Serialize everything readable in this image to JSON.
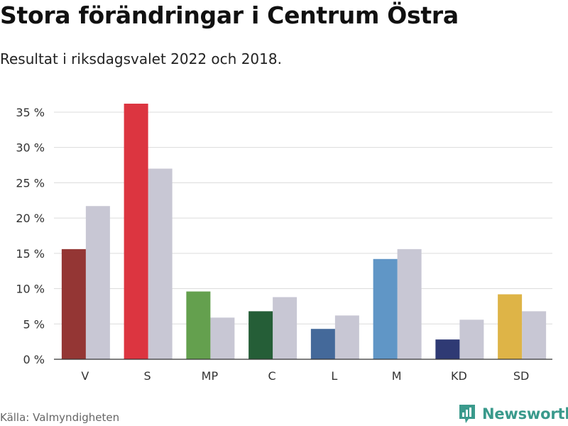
{
  "chart_data": {
    "type": "bar",
    "title": "Stora förändringar i Centrum Östra",
    "subtitle": "Resultat i riksdagsvalet 2022 och 2018.",
    "categories": [
      "V",
      "S",
      "MP",
      "C",
      "L",
      "M",
      "KD",
      "SD"
    ],
    "series": [
      {
        "name": "2022",
        "values": [
          15.6,
          36.2,
          9.6,
          6.8,
          4.3,
          14.2,
          2.8,
          9.2
        ],
        "colors": [
          "#943634",
          "#dc3540",
          "#64a04e",
          "#255e37",
          "#44699a",
          "#6096c6",
          "#2f3a74",
          "#deb447"
        ]
      },
      {
        "name": "2018",
        "values": [
          21.7,
          27.0,
          5.9,
          8.8,
          6.2,
          15.6,
          5.6,
          6.8
        ],
        "color": "#c8c7d4"
      }
    ],
    "y_ticks": [
      "0 %",
      "5 %",
      "10 %",
      "15 %",
      "20 %",
      "25 %",
      "30 %",
      "35 %"
    ],
    "y_tick_values": [
      0,
      5,
      10,
      15,
      20,
      25,
      30,
      35
    ],
    "ylim": [
      0,
      35
    ],
    "xlabel": "",
    "ylabel": "",
    "grid": true
  },
  "footer": {
    "source": "Källa: Valmyndigheten",
    "brand": "Newsworthy"
  },
  "colors": {
    "grid": "#dcdcdc",
    "axis": "#333333",
    "brand": "#3a9a8c"
  }
}
